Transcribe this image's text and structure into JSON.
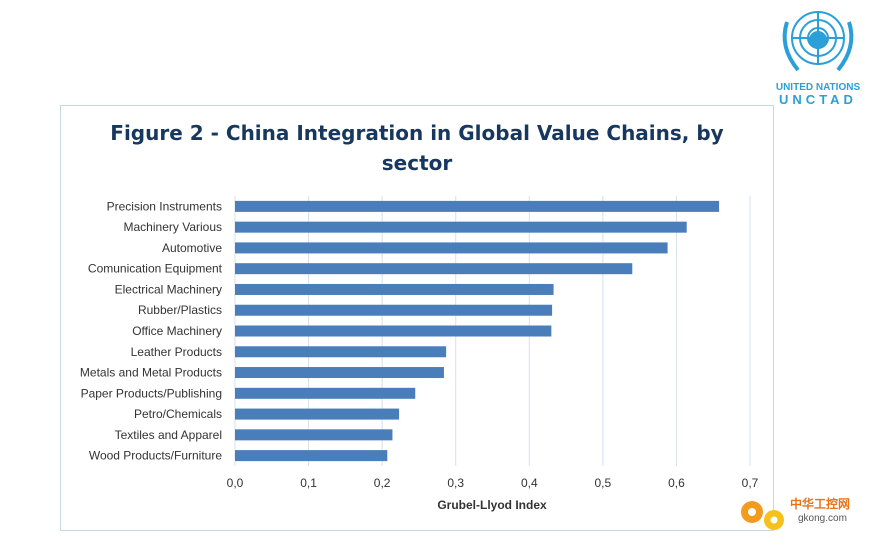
{
  "logo": {
    "line1": "UNITED NATIONS",
    "line2": "UNCTAD"
  },
  "watermark": {
    "cn": "中华工控网",
    "site": "gkong.com"
  },
  "chart_data": {
    "type": "bar",
    "orientation": "horizontal",
    "title_line1": "Figure 2 - China Integration in Global Value Chains, by",
    "title_line2": "sector",
    "xlabel": "Grubel-Llyod Index",
    "ylabel": "",
    "xlim": [
      0,
      0.7
    ],
    "xticks": [
      "0,0",
      "0,1",
      "0,2",
      "0,3",
      "0,4",
      "0,5",
      "0,6",
      "0,7"
    ],
    "grid": true,
    "bar_color": "#4a7ebb",
    "categories": [
      "Precision Instruments",
      "Machinery Various",
      "Automotive",
      "Comunication Equipment",
      "Electrical Machinery",
      "Rubber/Plastics",
      "Office Machinery",
      "Leather Products",
      "Metals and Metal Products",
      "Paper Products/Publishing",
      "Petro/Chemicals",
      "Textiles and Apparel",
      "Wood Products/Furniture"
    ],
    "values": [
      0.658,
      0.614,
      0.588,
      0.54,
      0.433,
      0.431,
      0.43,
      0.287,
      0.284,
      0.245,
      0.223,
      0.214,
      0.207
    ]
  }
}
